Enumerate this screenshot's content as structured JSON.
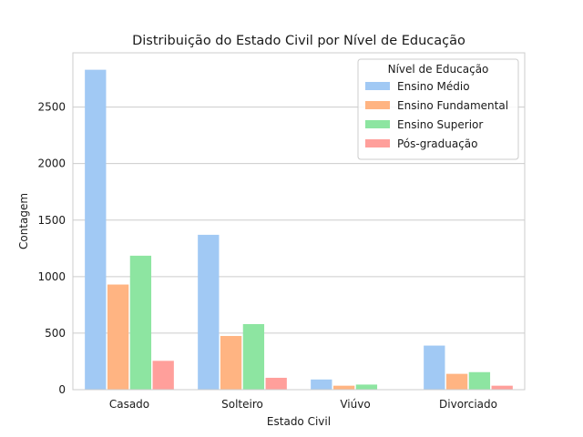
{
  "chart_data": {
    "type": "bar",
    "title": "Distribuição do Estado Civil por Nível de Educação",
    "xlabel": "Estado Civil",
    "ylabel": "Contagem",
    "categories": [
      "Casado",
      "Solteiro",
      "Viúvo",
      "Divorciado"
    ],
    "series": [
      {
        "name": "Ensino Médio",
        "color": "#a1c9f4",
        "values": [
          2830,
          1370,
          90,
          390
        ]
      },
      {
        "name": "Ensino Fundamental",
        "color": "#ffb482",
        "values": [
          930,
          475,
          35,
          140
        ]
      },
      {
        "name": "Ensino Superior",
        "color": "#8de5a1",
        "values": [
          1185,
          580,
          45,
          155
        ]
      },
      {
        "name": "Pós-graduação",
        "color": "#ff9f9b",
        "values": [
          255,
          105,
          0,
          35
        ]
      }
    ],
    "ylim": [
      0,
      2980
    ],
    "yticks": [
      0,
      500,
      1000,
      1500,
      2000,
      2500
    ],
    "grid": true,
    "legend": {
      "title": "Nível de Educação",
      "placement": "top-right"
    }
  }
}
